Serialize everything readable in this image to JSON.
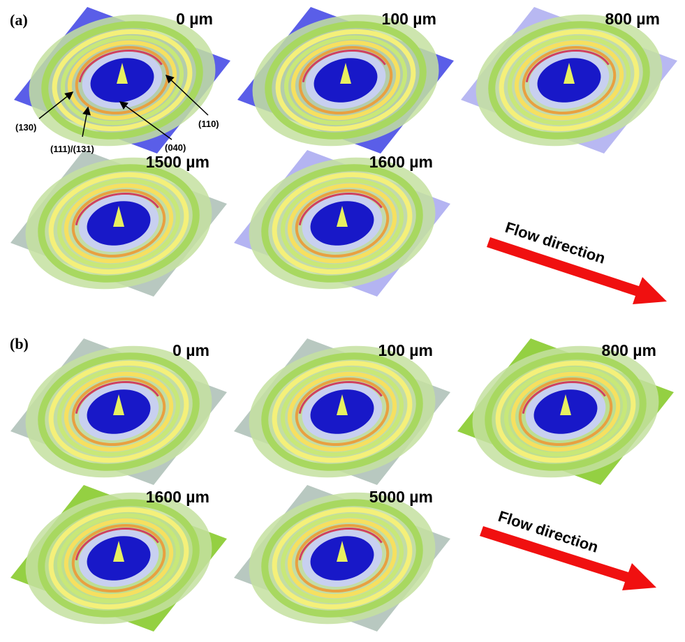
{
  "panels": [
    {
      "label": "(a)",
      "images": [
        {
          "label": "0 µm"
        },
        {
          "label": "100 µm"
        },
        {
          "label": "800 µm"
        },
        {
          "label": "1500 µm"
        },
        {
          "label": "1600 µm"
        }
      ],
      "annotations": [
        "(130)",
        "(111)/(131)",
        "(040)",
        "(110)"
      ],
      "flow_label": "Flow direction"
    },
    {
      "label": "(b)",
      "images": [
        {
          "label": "0 µm"
        },
        {
          "label": "100 µm"
        },
        {
          "label": "800 µm"
        },
        {
          "label": "1600 µm"
        },
        {
          "label": "5000 µm"
        }
      ],
      "flow_label": "Flow direction"
    }
  ]
}
